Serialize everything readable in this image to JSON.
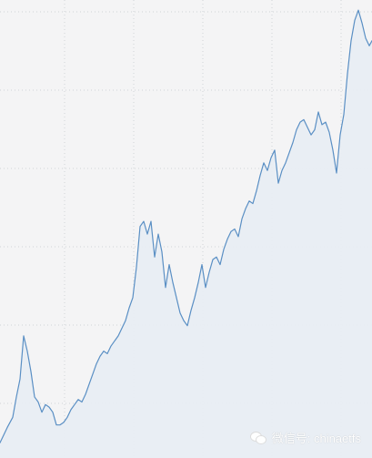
{
  "colors": {
    "background": "#f4f4f5",
    "grid": "#cfd3d8",
    "line": "#5a8fc4",
    "area": "#e8edf3"
  },
  "watermark": {
    "text": "微信号: chinaetfs",
    "icon": "wechat-icon"
  },
  "chart_data": {
    "type": "area",
    "x": [
      0,
      8,
      14,
      18,
      22,
      26,
      30,
      34,
      38,
      42,
      46,
      50,
      54,
      58,
      62,
      66,
      70,
      74,
      78,
      82,
      86,
      90,
      94,
      98,
      102,
      106,
      110,
      114,
      118,
      122,
      126,
      130,
      134,
      138,
      142,
      146,
      150,
      154,
      158,
      162,
      166,
      170,
      174,
      178,
      182,
      186,
      190,
      194,
      198,
      202,
      206,
      210,
      214,
      218,
      222,
      226,
      230,
      234,
      238,
      242,
      246,
      250,
      254,
      258,
      262,
      266,
      270,
      274,
      278,
      282,
      286,
      290,
      294,
      298,
      302,
      306,
      310,
      314,
      318,
      322,
      326,
      330,
      334,
      338,
      342,
      346,
      350,
      354,
      358,
      362,
      366,
      370,
      374,
      378,
      382,
      386,
      390,
      394,
      398,
      402,
      406,
      409
    ],
    "y": [
      6,
      12,
      16,
      24,
      31,
      48,
      42,
      34,
      24,
      22,
      18,
      21,
      20,
      18,
      13,
      13,
      14,
      16,
      19,
      21,
      23,
      22,
      25,
      29,
      33,
      37,
      40,
      42,
      41,
      44,
      46,
      48,
      51,
      54,
      59,
      63,
      75,
      91,
      93,
      88,
      93,
      79,
      88,
      81,
      67,
      76,
      69,
      63,
      57,
      54,
      52,
      58,
      63,
      69,
      76,
      67,
      73,
      78,
      79,
      76,
      82,
      86,
      89,
      90,
      87,
      94,
      98,
      101,
      100,
      105,
      111,
      116,
      113,
      118,
      121,
      108,
      113,
      116,
      120,
      124,
      129,
      132,
      133,
      130,
      127,
      129,
      136,
      131,
      132,
      128,
      121,
      112,
      127,
      135,
      151,
      164,
      172,
      176,
      171,
      165,
      162,
      164
    ],
    "ylim": [
      0,
      180
    ],
    "xlabel": "",
    "ylabel": "",
    "grid": true
  }
}
